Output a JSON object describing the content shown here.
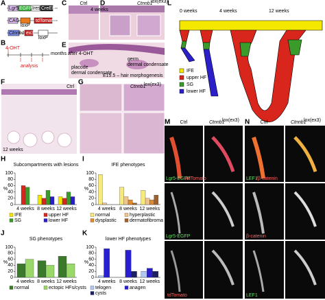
{
  "panels": {
    "A": {
      "letter": "A",
      "labels": [
        "Lgr5",
        "EGFP",
        "Ires",
        "CreER",
        "CAG",
        "loxP",
        "tdTomato",
        "Ctnnb1",
        "ex3",
        "loxP"
      ]
    },
    "B": {
      "letter": "B",
      "drug": "4-OHT",
      "axis_label": "months after 4-OHT",
      "analysis": "analysis"
    },
    "C": {
      "letter": "C",
      "condition": "Ctrl",
      "time": "4 weeks"
    },
    "D": {
      "letter": "D",
      "gene": "Ctnnb1",
      "allele": "lox(ex3)"
    },
    "E": {
      "letter": "E",
      "labels": [
        "placode",
        "dermal condensate",
        "germ",
        "dermal condensate"
      ],
      "caption": "E15.5 – hair morphogenesis"
    },
    "F": {
      "letter": "F",
      "condition": "Ctrl",
      "time": "12 weeks"
    },
    "G": {
      "letter": "G",
      "gene": "Ctnnb1",
      "allele": "lox(ex3)"
    },
    "H": {
      "letter": "H"
    },
    "I": {
      "letter": "I"
    },
    "J": {
      "letter": "J"
    },
    "K": {
      "letter": "K"
    },
    "L": {
      "letter": "L",
      "times": [
        "0 weeks",
        "4 weeks",
        "12 weeks"
      ],
      "legend": [
        "IFE",
        "upper HF",
        "SG",
        "lower HF"
      ]
    },
    "M": {
      "letter": "M",
      "condition": "Ctrl",
      "gene": "Ctnnb1",
      "allele": "lox(ex3)",
      "channels": [
        "Lgr5-EGFP",
        "/tdTomato",
        "Lgr5-EGFP",
        "tdTomato"
      ]
    },
    "N": {
      "letter": "N",
      "condition": "Ctrl",
      "gene": "Ctnnb1",
      "allele": "lox(ex3)",
      "channels": [
        "LEF1",
        "/β-catenin",
        "β-catenin",
        "LEF1"
      ]
    }
  },
  "chart_data": [
    {
      "type": "bar",
      "title": "Subcompartments with lesions",
      "y_label": "%",
      "categories": [
        "4 weeks",
        "8 weeks",
        "12 weeks"
      ],
      "series": [
        {
          "name": "IFE",
          "color": "#f2e600",
          "values": [
            0,
            30,
            25
          ]
        },
        {
          "name": "upper HF",
          "color": "#d9261c",
          "values": [
            60,
            20,
            20
          ]
        },
        {
          "name": "SG",
          "color": "#3a9a2a",
          "values": [
            55,
            45,
            40
          ]
        },
        {
          "name": "lower HF",
          "color": "#2a1fc8",
          "values": [
            0,
            25,
            25
          ]
        }
      ],
      "ylim": [
        0,
        100
      ],
      "yticks": [
        0,
        20,
        40,
        60,
        80,
        100
      ]
    },
    {
      "type": "bar",
      "title": "IFE phenotypes",
      "y_label": "%",
      "categories": [
        "4 weeks",
        "8 weeks",
        "12 weeks"
      ],
      "series": [
        {
          "name": "normal",
          "color": "#f5ea7a",
          "values": [
            95,
            55,
            45
          ]
        },
        {
          "name": "hyperplastic",
          "color": "#f2c48a",
          "values": [
            5,
            25,
            20
          ]
        },
        {
          "name": "dysplastic",
          "color": "#e08a30",
          "values": [
            0,
            15,
            15
          ]
        },
        {
          "name": "dermatofibroma",
          "color": "#a0602a",
          "values": [
            0,
            5,
            30
          ]
        }
      ],
      "ylim": [
        0,
        100
      ],
      "yticks": [
        0,
        20,
        40,
        60,
        80,
        100
      ]
    },
    {
      "type": "bar",
      "title": "SG phenotypes",
      "y_label": "%",
      "categories": [
        "4 weeks",
        "8 weeks",
        "12 weeks"
      ],
      "series": [
        {
          "name": "normal",
          "color": "#3a7a2a",
          "values": [
            45,
            55,
            70
          ]
        },
        {
          "name": "ectopic HFs/cysts",
          "color": "#9ad86a",
          "values": [
            60,
            40,
            45
          ]
        }
      ],
      "ylim": [
        0,
        100
      ],
      "yticks": [
        0,
        20,
        40,
        60,
        80,
        100
      ]
    },
    {
      "type": "bar",
      "title": "lower HF phenotypes",
      "y_label": "%",
      "categories": [
        "4 weeks",
        "8 weeks",
        "12 weeks"
      ],
      "series": [
        {
          "name": "telogen",
          "color": "#b0c8f0",
          "values": [
            5,
            0,
            20
          ]
        },
        {
          "name": "anagen",
          "color": "#2a1fd0",
          "values": [
            95,
            90,
            30
          ]
        },
        {
          "name": "cysts",
          "color": "#1a2060",
          "values": [
            0,
            20,
            20
          ]
        }
      ],
      "ylim": [
        0,
        100
      ],
      "yticks": [
        0,
        20,
        40,
        60,
        80,
        100
      ]
    }
  ]
}
